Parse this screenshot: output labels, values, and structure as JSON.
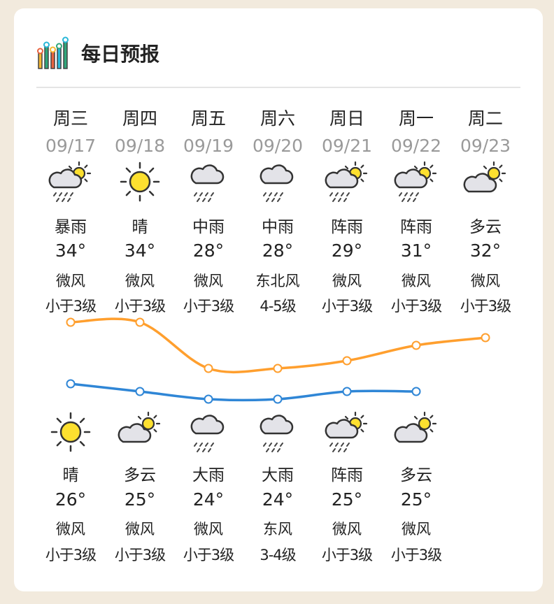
{
  "header": {
    "title": "每日预报",
    "icon": "bar-chart-icon"
  },
  "colors": {
    "high_line": "#ff9f2e",
    "low_line": "#2f86d6",
    "sun": "#fde02f",
    "cloud": "#e3e3e8",
    "background": "#f2eadd"
  },
  "days": [
    {
      "day": "周三",
      "date": "09/17",
      "day_icon": "partly-cloudy-rain",
      "day_weather": "暴雨",
      "high": 34,
      "high_label": "34°",
      "day_wind": "微风",
      "day_level": "小于3级",
      "night_icon": "sun",
      "night_weather": "晴",
      "low": 26,
      "low_label": "26°",
      "night_wind": "微风",
      "night_level": "小于3级"
    },
    {
      "day": "周四",
      "date": "09/18",
      "day_icon": "sun",
      "day_weather": "晴",
      "high": 34,
      "high_label": "34°",
      "day_wind": "微风",
      "day_level": "小于3级",
      "night_icon": "partly-cloudy",
      "night_weather": "多云",
      "low": 25,
      "low_label": "25°",
      "night_wind": "微风",
      "night_level": "小于3级"
    },
    {
      "day": "周五",
      "date": "09/19",
      "day_icon": "rain",
      "day_weather": "中雨",
      "high": 28,
      "high_label": "28°",
      "day_wind": "微风",
      "day_level": "小于3级",
      "night_icon": "rain",
      "night_weather": "大雨",
      "low": 24,
      "low_label": "24°",
      "night_wind": "微风",
      "night_level": "小于3级"
    },
    {
      "day": "周六",
      "date": "09/20",
      "day_icon": "rain",
      "day_weather": "中雨",
      "high": 28,
      "high_label": "28°",
      "day_wind": "东北风",
      "day_level": "4-5级",
      "night_icon": "rain",
      "night_weather": "大雨",
      "low": 24,
      "low_label": "24°",
      "night_wind": "东风",
      "night_level": "3-4级"
    },
    {
      "day": "周日",
      "date": "09/21",
      "day_icon": "partly-cloudy-rain",
      "day_weather": "阵雨",
      "high": 29,
      "high_label": "29°",
      "day_wind": "微风",
      "day_level": "小于3级",
      "night_icon": "partly-cloudy-rain",
      "night_weather": "阵雨",
      "low": 25,
      "low_label": "25°",
      "night_wind": "微风",
      "night_level": "小于3级"
    },
    {
      "day": "周一",
      "date": "09/22",
      "day_icon": "partly-cloudy-rain",
      "day_weather": "阵雨",
      "high": 31,
      "high_label": "31°",
      "day_wind": "微风",
      "day_level": "小于3级",
      "night_icon": "partly-cloudy",
      "night_weather": "多云",
      "low": 25,
      "low_label": "25°",
      "night_wind": "微风",
      "night_level": "小于3级"
    },
    {
      "day": "周二",
      "date": "09/23",
      "day_icon": "partly-cloudy",
      "day_weather": "多云",
      "high": 32,
      "high_label": "32°",
      "day_wind": "微风",
      "day_level": "小于3级"
    }
  ]
}
